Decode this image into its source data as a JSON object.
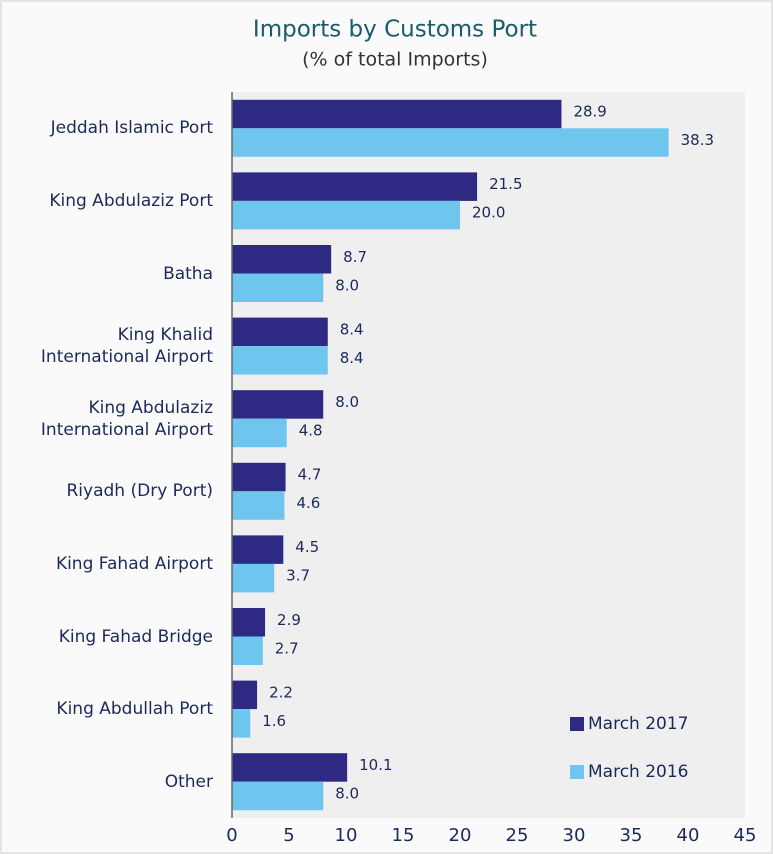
{
  "chart_data": {
    "type": "hbar",
    "title": "Imports by Customs Port",
    "subtitle": "(% of total Imports)",
    "categories": [
      "Jeddah Islamic Port",
      "King Abdulaziz Port",
      "Batha",
      "King Khalid International Airport",
      "King Abdulaziz International Airport",
      "Riyadh (Dry Port)",
      "King Fahad Airport",
      "King Fahad Bridge",
      "King Abdullah Port",
      "Other"
    ],
    "series": [
      {
        "name": "March 2017",
        "color": "#2e2a84",
        "values": [
          28.9,
          21.5,
          8.7,
          8.4,
          8.0,
          4.7,
          4.5,
          2.9,
          2.2,
          10.1
        ],
        "value_labels": [
          "28.9",
          "21.5",
          "8.7",
          "8.4",
          "8.0",
          "4.7",
          "4.5",
          "2.9",
          "2.2",
          "10.1"
        ]
      },
      {
        "name": "March 2016",
        "color": "#6ec6ee",
        "values": [
          38.3,
          20.0,
          8.0,
          8.4,
          4.8,
          4.6,
          3.7,
          2.7,
          1.6,
          8.0
        ],
        "value_labels": [
          "38.3",
          "20.0",
          "8.0",
          "8.4",
          "4.8",
          "4.6",
          "3.7",
          "2.7",
          "1.6",
          "8.0"
        ]
      }
    ],
    "xlim": [
      0,
      45
    ],
    "xticks": [
      0,
      5,
      10,
      15,
      20,
      25,
      30,
      35,
      40,
      45
    ],
    "legend": "lower right",
    "grid": false
  }
}
